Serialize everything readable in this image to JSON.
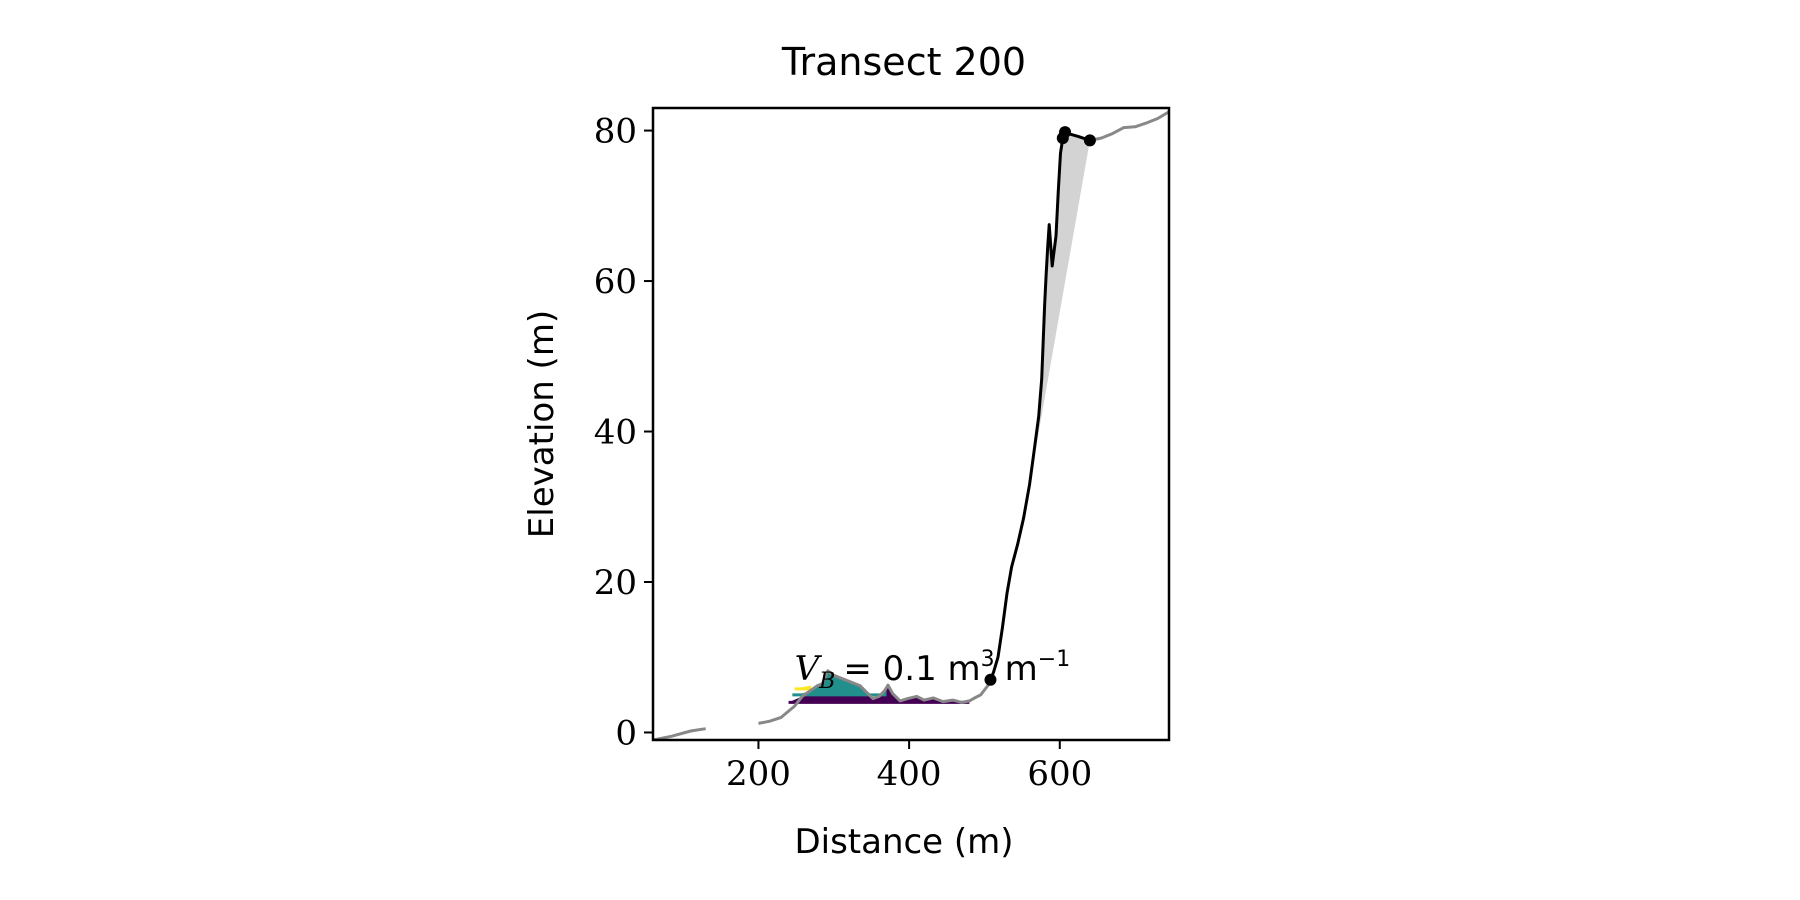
{
  "chart_data": {
    "type": "line",
    "title": "Transect 200",
    "xlabel": "Distance (m)",
    "ylabel": "Elevation (m)",
    "xlim": [
      60,
      745
    ],
    "ylim": [
      -1,
      83
    ],
    "xticks": [
      200,
      400,
      600
    ],
    "yticks": [
      0,
      20,
      40,
      60,
      80
    ],
    "grid": false,
    "legend": "none",
    "annotation": {
      "text_main": "V",
      "text_sub": "B",
      "text_equals": "= 0.1 m",
      "text_sup1": "3",
      "text_unit": "m",
      "text_sup2": "−1",
      "x": 248,
      "y": 7
    },
    "colors": {
      "profile": "#888888",
      "cliff": "#000000",
      "fill": "#d3d3d3",
      "beach_level_1": "#440154",
      "beach_level_2": "#21908d",
      "beach_level_3": "#fde725"
    },
    "series": [
      {
        "role": "profile",
        "segments": [
          [
            [
              60,
              -1
            ],
            [
              85,
              -0.5
            ],
            [
              110,
              0.2
            ],
            [
              130,
              0.5
            ]
          ],
          [
            [
              200,
              1.2
            ],
            [
              215,
              1.5
            ],
            [
              230,
              2
            ],
            [
              248,
              3.5
            ],
            [
              258,
              4.8
            ],
            [
              268,
              5.5
            ],
            [
              278,
              6.2
            ],
            [
              285,
              6.5
            ],
            [
              292,
              8.2
            ],
            [
              300,
              7.6
            ],
            [
              310,
              7.2
            ],
            [
              320,
              6.8
            ],
            [
              335,
              6.2
            ],
            [
              345,
              5.2
            ],
            [
              352,
              4.5
            ],
            [
              360,
              4.8
            ],
            [
              367,
              5.5
            ],
            [
              372,
              6.3
            ],
            [
              378,
              5.2
            ],
            [
              388,
              4.2
            ],
            [
              398,
              4.5
            ],
            [
              410,
              4.8
            ],
            [
              420,
              4.3
            ],
            [
              432,
              4.6
            ],
            [
              445,
              4.1
            ],
            [
              458,
              4.3
            ],
            [
              470,
              4
            ],
            [
              480,
              4.2
            ],
            [
              487,
              4.6
            ],
            [
              495,
              5
            ],
            [
              505,
              6.3
            ],
            [
              512,
              7.2
            ]
          ],
          [
            [
              640,
              78.7
            ],
            [
              655,
              79
            ],
            [
              670,
              79.6
            ],
            [
              685,
              80.4
            ],
            [
              700,
              80.5
            ],
            [
              715,
              81
            ],
            [
              730,
              81.6
            ],
            [
              745,
              82.5
            ]
          ]
        ]
      },
      {
        "role": "cliff",
        "points": [
          [
            508,
            7
          ],
          [
            512,
            8
          ],
          [
            518,
            10
          ],
          [
            524,
            14
          ],
          [
            530,
            18.5
          ],
          [
            536,
            22
          ],
          [
            544,
            25
          ],
          [
            552,
            28.5
          ],
          [
            560,
            33
          ],
          [
            566,
            37.5
          ],
          [
            572,
            42
          ],
          [
            576,
            47
          ],
          [
            578,
            52
          ],
          [
            580,
            57
          ],
          [
            582,
            61
          ],
          [
            584,
            64.5
          ],
          [
            586,
            67.5
          ],
          [
            590,
            62
          ],
          [
            595,
            66
          ],
          [
            598,
            72
          ],
          [
            601,
            77
          ],
          [
            604,
            79
          ],
          [
            607,
            79.8
          ],
          [
            611,
            79.6
          ],
          [
            625,
            79.2
          ],
          [
            640,
            78.7
          ]
        ]
      },
      {
        "role": "cliff_markers",
        "points": [
          [
            508,
            7
          ],
          [
            604,
            79
          ],
          [
            607,
            79.8
          ],
          [
            640,
            78.7
          ]
        ]
      },
      {
        "role": "fill_region",
        "points": [
          [
            560,
            33
          ],
          [
            566,
            37.5
          ],
          [
            572,
            42
          ],
          [
            576,
            47
          ],
          [
            578,
            52
          ],
          [
            580,
            57
          ],
          [
            582,
            61
          ],
          [
            584,
            64.5
          ],
          [
            586,
            67.5
          ],
          [
            590,
            62
          ],
          [
            595,
            66
          ],
          [
            598,
            72
          ],
          [
            601,
            77
          ],
          [
            604,
            79
          ],
          [
            607,
            79.8
          ],
          [
            611,
            79.6
          ],
          [
            625,
            79.2
          ],
          [
            640,
            78.7
          ]
        ]
      },
      {
        "role": "beach_fill_level_1",
        "base": 4,
        "x": [
          240,
          480
        ],
        "profile": [
          [
            240,
            4
          ],
          [
            258,
            4.8
          ],
          [
            268,
            5.5
          ],
          [
            278,
            6.2
          ],
          [
            285,
            6.5
          ],
          [
            292,
            8.2
          ],
          [
            300,
            7.6
          ],
          [
            310,
            7.2
          ],
          [
            320,
            6.8
          ],
          [
            335,
            6.2
          ],
          [
            345,
            5.2
          ],
          [
            352,
            4.5
          ],
          [
            360,
            4.8
          ],
          [
            367,
            5.5
          ],
          [
            372,
            6.3
          ],
          [
            378,
            5.2
          ],
          [
            388,
            4.2
          ],
          [
            398,
            4.5
          ],
          [
            410,
            4.8
          ],
          [
            420,
            4.3
          ],
          [
            432,
            4.6
          ],
          [
            445,
            4.1
          ],
          [
            458,
            4.3
          ],
          [
            470,
            4
          ],
          [
            480,
            4.2
          ]
        ]
      },
      {
        "role": "beach_fill_level_2",
        "base": 5,
        "x": [
          245,
          370
        ],
        "profile": [
          [
            245,
            5
          ],
          [
            258,
            5.2
          ],
          [
            268,
            5.5
          ],
          [
            278,
            6.2
          ],
          [
            285,
            6.5
          ],
          [
            292,
            8.2
          ],
          [
            300,
            7.6
          ],
          [
            310,
            7.2
          ],
          [
            320,
            6.8
          ],
          [
            335,
            6.2
          ],
          [
            345,
            5.2
          ],
          [
            352,
            5
          ],
          [
            360,
            5
          ],
          [
            367,
            5.5
          ],
          [
            370,
            5.8
          ]
        ]
      },
      {
        "role": "beach_fill_level_3",
        "base": 5.8,
        "x": [
          248,
          270
        ],
        "profile": [
          [
            248,
            5.8
          ],
          [
            258,
            6
          ],
          [
            268,
            6.2
          ],
          [
            270,
            6.2
          ]
        ]
      }
    ]
  }
}
